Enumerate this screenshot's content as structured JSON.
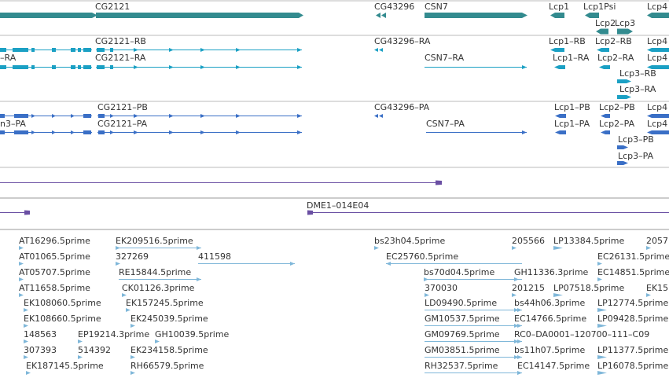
{
  "colors": {
    "gene": "#338b8f",
    "mrna": "#1ba0c4",
    "cds": "#3a6fc6",
    "track_line": "#6a4fa3",
    "est": "#7fb7d9",
    "divider": "#999999",
    "text": "#333333"
  },
  "genes": {
    "CG2121": "CG2121",
    "CG43296": "CG43296",
    "CSN7": "CSN7",
    "Lcp1": "Lcp1",
    "Lcp1Psi": "Lcp1Psi",
    "Lcp2": "Lcp2",
    "Lcp3": "Lcp3",
    "Lcp4": "Lcp4"
  },
  "mrna": {
    "left_ra_a": "–RA",
    "left_ra_b": "–RA",
    "CG2121_RB": "CG2121–RB",
    "CG2121_RA": "CG2121–RA",
    "CG43296_RA": "CG43296–RA",
    "CSN7_RA": "CSN7–RA",
    "Lcp1_RB": "Lcp1–RB",
    "Lcp2_RB": "Lcp2–RB",
    "Lcp4_a": "Lcp4",
    "Lcp1_RA": "Lcp1–RA",
    "Lcp2_RA": "Lcp2–RA",
    "Lcp4_b": "Lcp4",
    "Lcp3_RB": "Lcp3–RB",
    "Lcp3_RA": "Lcp3–RA"
  },
  "proteins": {
    "CG2121_PB": "CG2121–PB",
    "n3_PA": "n3–PA",
    "CG2121_PA": "CG2121–PA",
    "CG43296_PA": "CG43296–PA",
    "CSN7_PA": "CSN7–PA",
    "Lcp1_PB": "Lcp1–PB",
    "Lcp2_PB": "Lcp2–PB",
    "Lcp4_a": "Lcp4",
    "Lcp1_PA": "Lcp1–PA",
    "Lcp2_PA": "Lcp2–PA",
    "Lcp4_b": "Lcp4",
    "Lcp3_PB": "Lcp3–PB",
    "Lcp3_PA": "Lcp3–PA"
  },
  "clone": {
    "label": "DME1–014E04"
  },
  "ests": [
    "AT16296.5prime",
    "EK209516.5prime",
    "bs23h04.5prime",
    "205566",
    "LP13384.5prime",
    "2057",
    "AT01065.5prime",
    "327269",
    "411598",
    "EC25760.5prime",
    "EC26131.5prime",
    "AT05707.5prime",
    "RE15844.5prime",
    "bs70d04.5prime",
    "GH11336.3prime",
    "EC14851.5prime",
    "AT11658.5prime",
    "CK01126.3prime",
    "370030",
    "201215",
    "LP07518.5prime",
    "EK15",
    "EK108060.5prime",
    "EK157245.5prime",
    "LD09490.5prime",
    "bs44h06.3prime",
    "LP12774.5prime",
    "EK108660.5prime",
    "EK245039.5prime",
    "GM10537.5prime",
    "EC14766.5prime",
    "LP09428.5prime",
    "148563",
    "EP19214.3prime",
    "GH10039.5prime",
    "GM09769.5prime",
    "RC0–DA0001–120700–111–C09",
    "307393",
    "514392",
    "EK234158.5prime",
    "GM03851.5prime",
    "bs11h07.5prime",
    "LP11377.5prime",
    "EK187145.5prime",
    "RH66579.5prime",
    "RH32537.5prime",
    "EC14147.5prime",
    "LP16078.5prime"
  ]
}
